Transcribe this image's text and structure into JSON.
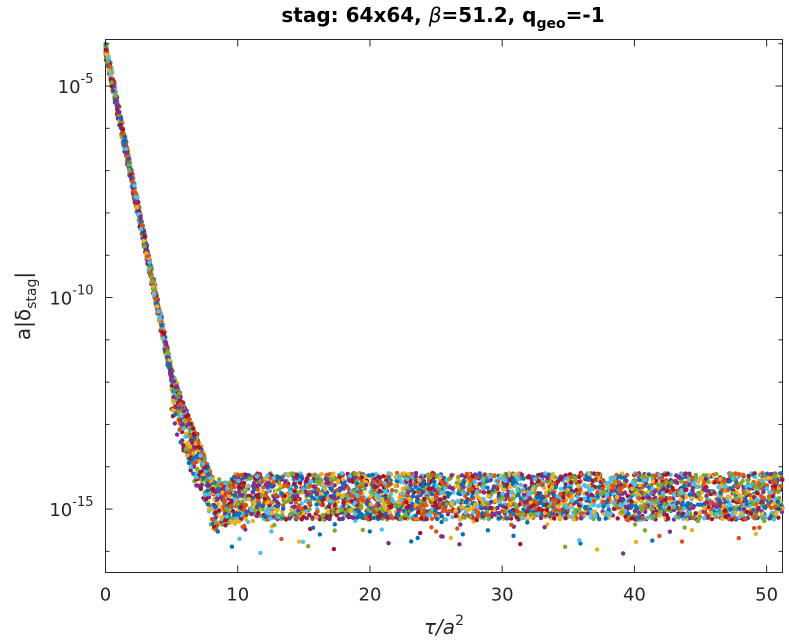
{
  "chart_data": {
    "type": "scatter",
    "title": {
      "prefix": "stag: 64x64, ",
      "beta_symbol": "β",
      "beta_value": "=51.2, q",
      "q_subscript": "geo",
      "q_value": "=-1"
    },
    "xlabel": {
      "main": "τ/a",
      "superscript": "2"
    },
    "ylabel": {
      "prefix": "a|δ",
      "subscript": "stag",
      "suffix": "|"
    },
    "xlim": [
      0,
      51.2
    ],
    "ylim_log10": [
      -16.5,
      -3.9
    ],
    "y_scale": "log",
    "x_ticks": [
      {
        "value": 0,
        "label": "0"
      },
      {
        "value": 10,
        "label": "10"
      },
      {
        "value": 20,
        "label": "20"
      },
      {
        "value": 30,
        "label": "30"
      },
      {
        "value": 40,
        "label": "40"
      },
      {
        "value": 50,
        "label": "50"
      }
    ],
    "y_ticks": [
      {
        "exp": -5,
        "base": "10",
        "sup": "-5"
      },
      {
        "exp": -10,
        "base": "10",
        "sup": "-10"
      },
      {
        "exp": -15,
        "base": "10",
        "sup": "-15"
      }
    ],
    "series_colors": [
      "#0072bd",
      "#d95319",
      "#edb120",
      "#7e2f8e",
      "#77ac30",
      "#4dbeee",
      "#a2142f"
    ],
    "decay": {
      "start_log10": -4.1,
      "segments": [
        {
          "x_from": 0,
          "x_to": 5,
          "slope_log10_per_unit": -1.55
        },
        {
          "x_from": 5,
          "x_to": 9.5,
          "slope_log10_per_unit": -0.82
        }
      ],
      "plateau_log10_center": -14.7,
      "plateau_log10_spread": 0.55
    },
    "legend": "none",
    "grid": false
  }
}
